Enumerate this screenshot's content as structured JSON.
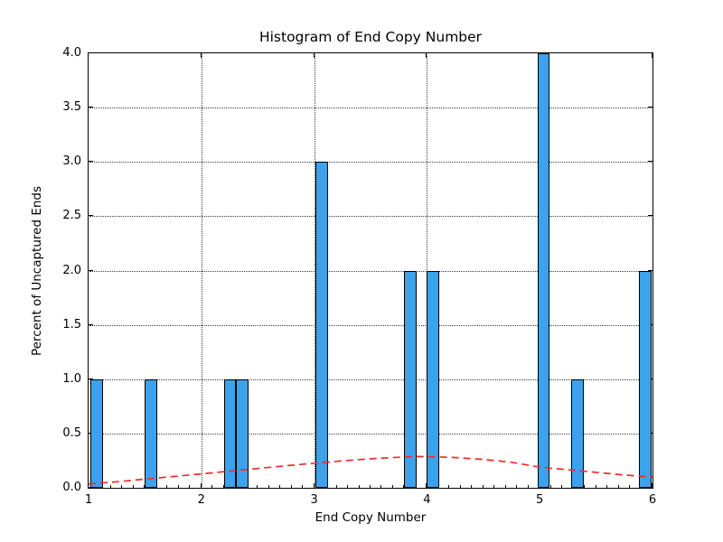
{
  "chart_data": {
    "type": "bar",
    "title": "Histogram of End Copy Number",
    "xlabel": "End Copy Number",
    "ylabel": "Percent of Uncaptured Ends",
    "xlim": [
      1,
      6
    ],
    "ylim": [
      0,
      4
    ],
    "grid": true,
    "legend": "none",
    "x_ticks": [
      {
        "label": "1",
        "value": 1
      },
      {
        "label": "2",
        "value": 2
      },
      {
        "label": "3",
        "value": 3
      },
      {
        "label": "4",
        "value": 4
      },
      {
        "label": "5",
        "value": 5
      },
      {
        "label": "6",
        "value": 6
      }
    ],
    "y_ticks": [
      {
        "label": "0.0",
        "value": 0.0
      },
      {
        "label": "0.5",
        "value": 0.5
      },
      {
        "label": "1.0",
        "value": 1.0
      },
      {
        "label": "1.5",
        "value": 1.5
      },
      {
        "label": "2.0",
        "value": 2.0
      },
      {
        "label": "2.5",
        "value": 2.5
      },
      {
        "label": "3.0",
        "value": 3.0
      },
      {
        "label": "3.5",
        "value": 3.5
      },
      {
        "label": "4.0",
        "value": 4.0
      }
    ],
    "x_minor_tick_step": 0.1,
    "grid_y_values": [
      0.5,
      1.0,
      1.5,
      2.0,
      2.5,
      3.0,
      3.5
    ],
    "grid_x_values": [
      2,
      3,
      4,
      5
    ],
    "bars": [
      {
        "x0": 1.02,
        "x1": 1.13,
        "h": 1
      },
      {
        "x0": 1.5,
        "x1": 1.61,
        "h": 1
      },
      {
        "x0": 2.2,
        "x1": 2.31,
        "h": 1
      },
      {
        "x0": 2.31,
        "x1": 2.42,
        "h": 1
      },
      {
        "x0": 3.01,
        "x1": 3.12,
        "h": 3
      },
      {
        "x0": 3.8,
        "x1": 3.91,
        "h": 2
      },
      {
        "x0": 4.0,
        "x1": 4.11,
        "h": 2
      },
      {
        "x0": 4.98,
        "x1": 5.09,
        "h": 4
      },
      {
        "x0": 5.28,
        "x1": 5.39,
        "h": 1
      },
      {
        "x0": 5.88,
        "x1": 5.99,
        "h": 2
      }
    ],
    "fit_curve": {
      "style": "dashed",
      "points": [
        [
          1.0,
          0.035
        ],
        [
          1.25,
          0.056
        ],
        [
          1.5,
          0.08
        ],
        [
          1.75,
          0.104
        ],
        [
          2.0,
          0.128
        ],
        [
          2.25,
          0.153
        ],
        [
          2.5,
          0.178
        ],
        [
          2.75,
          0.203
        ],
        [
          3.0,
          0.226
        ],
        [
          3.25,
          0.248
        ],
        [
          3.5,
          0.267
        ],
        [
          3.75,
          0.281
        ],
        [
          3.9,
          0.288
        ],
        [
          4.0,
          0.287
        ],
        [
          4.25,
          0.279
        ],
        [
          4.5,
          0.261
        ],
        [
          4.75,
          0.235
        ],
        [
          5.0,
          0.19
        ],
        [
          5.25,
          0.166
        ],
        [
          5.5,
          0.142
        ],
        [
          5.75,
          0.118
        ],
        [
          6.0,
          0.098
        ]
      ]
    },
    "colors": {
      "bar_fill": "#3BA2EB",
      "bar_edge": "#000000",
      "fit_curve": "#F02C2C",
      "grid": "#3a3a3a",
      "frame": "#000000",
      "background": "#FFFFFF"
    }
  }
}
